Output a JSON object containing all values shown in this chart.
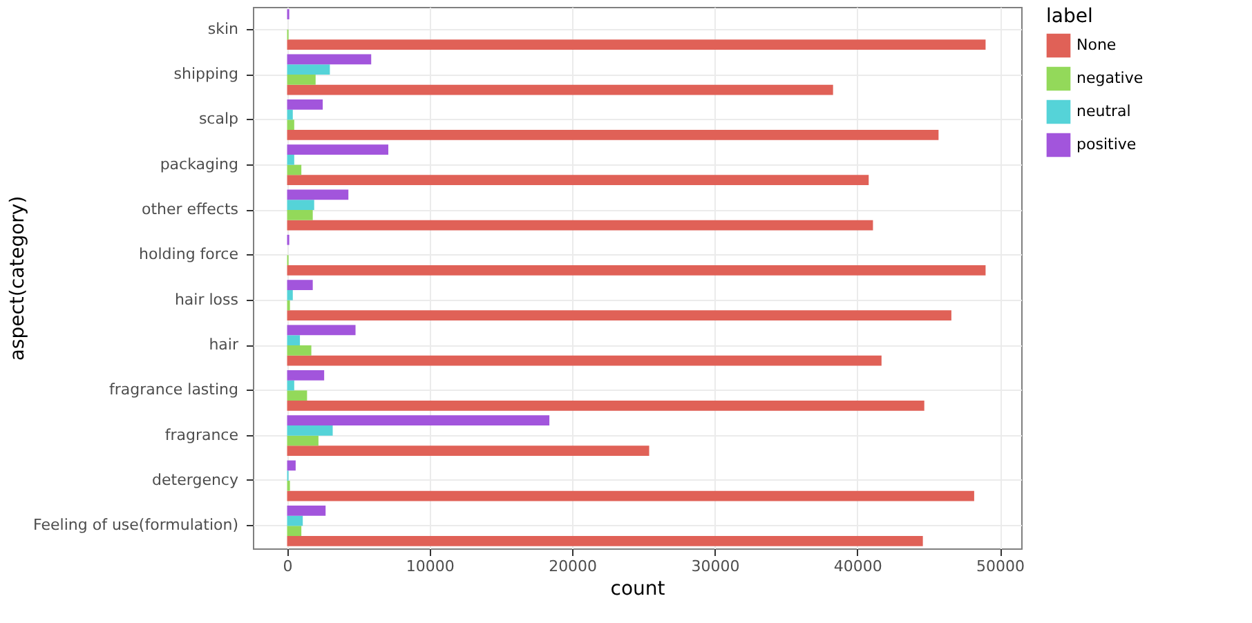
{
  "chart_data": {
    "type": "bar",
    "orientation": "horizontal",
    "xlabel": "count",
    "ylabel": "aspect(category)",
    "legend_title": "label",
    "legend": "right",
    "grid": true,
    "categories": [
      "skin",
      "shipping",
      "scalp",
      "packaging",
      "other effects",
      "holding force",
      "hair loss",
      "hair",
      "fragrance lasting",
      "fragrance",
      "detergency",
      "Feeling of use(formulation)"
    ],
    "series": [
      {
        "name": "None",
        "color": "#e06157",
        "values": [
          49000,
          38300,
          45700,
          40800,
          41100,
          49000,
          46600,
          41700,
          44700,
          25400,
          48200,
          44600
        ]
      },
      {
        "name": "negative",
        "color": "#93d95a",
        "values": [
          100,
          2000,
          500,
          1000,
          1800,
          100,
          200,
          1700,
          1400,
          2200,
          200,
          1000
        ]
      },
      {
        "name": "neutral",
        "color": "#55d3d8",
        "values": [
          0,
          3000,
          400,
          500,
          1900,
          0,
          400,
          900,
          500,
          3200,
          100,
          1100
        ]
      },
      {
        "name": "positive",
        "color": "#a255dc",
        "values": [
          150,
          5900,
          2500,
          7100,
          4300,
          150,
          1800,
          4800,
          2600,
          18400,
          600,
          2700
        ]
      }
    ],
    "xlim": [
      -2400,
      51500
    ],
    "xticks": [
      0,
      10000,
      20000,
      30000,
      40000,
      50000
    ]
  }
}
